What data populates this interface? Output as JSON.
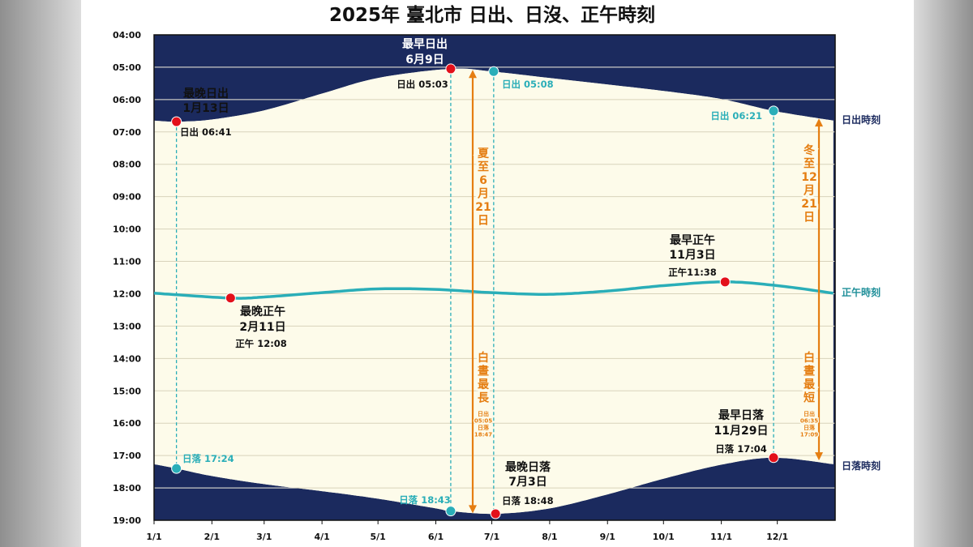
{
  "chart_data": {
    "type": "line",
    "title": "2025年 臺北市 日出、日沒、正午時刻",
    "y_tick_labels": [
      "04:00",
      "05:00",
      "06:00",
      "07:00",
      "08:00",
      "09:00",
      "10:00",
      "11:00",
      "12:00",
      "13:00",
      "14:00",
      "15:00",
      "16:00",
      "17:00",
      "18:00",
      "19:00"
    ],
    "x_tick_labels": [
      "1/1",
      "2/1",
      "3/1",
      "4/1",
      "5/1",
      "6/1",
      "7/1",
      "8/1",
      "9/1",
      "10/1",
      "11/1",
      "12/1"
    ],
    "ylim": [
      "04:00",
      "19:00"
    ],
    "xlim": [
      "2025-01-01",
      "2025-12-31"
    ],
    "grid": "horizontal",
    "series": [
      {
        "name": "日出時刻",
        "color": "#1b2a5e",
        "x": [
          "2025-01-01",
          "2025-01-13",
          "2025-02-01",
          "2025-03-01",
          "2025-04-01",
          "2025-05-01",
          "2025-06-09",
          "2025-07-01",
          "2025-08-01",
          "2025-09-01",
          "2025-10-01",
          "2025-11-01",
          "2025-11-29",
          "2025-12-31"
        ],
        "y": [
          "06:39",
          "06:41",
          "06:37",
          "06:20",
          "05:49",
          "05:20",
          "05:03",
          "05:08",
          "05:20",
          "05:32",
          "05:44",
          "05:59",
          "06:21",
          "06:39"
        ]
      },
      {
        "name": "正午時刻",
        "color": "#2aaeb8",
        "x": [
          "2025-01-01",
          "2025-02-11",
          "2025-03-01",
          "2025-04-01",
          "2025-05-01",
          "2025-06-01",
          "2025-07-01",
          "2025-08-01",
          "2025-09-01",
          "2025-10-01",
          "2025-11-03",
          "2025-12-01",
          "2025-12-31"
        ],
        "y": [
          "11:59",
          "12:08",
          "12:06",
          "11:58",
          "11:51",
          "11:52",
          "11:58",
          "12:01",
          "11:55",
          "11:45",
          "11:38",
          "11:45",
          "11:59"
        ]
      },
      {
        "name": "日落時刻",
        "color": "#1b2a5e",
        "x": [
          "2025-01-01",
          "2025-01-13",
          "2025-02-01",
          "2025-03-01",
          "2025-04-01",
          "2025-05-01",
          "2025-06-01",
          "2025-06-09",
          "2025-07-03",
          "2025-08-01",
          "2025-09-01",
          "2025-10-01",
          "2025-11-01",
          "2025-11-29",
          "2025-12-31"
        ],
        "y": [
          "17:16",
          "17:24",
          "17:38",
          "17:53",
          "18:06",
          "18:20",
          "18:38",
          "18:43",
          "18:48",
          "18:38",
          "18:12",
          "17:43",
          "17:17",
          "17:04",
          "17:16"
        ]
      }
    ],
    "annotations": {
      "latest_sunrise": {
        "title": "最晚日出",
        "date": "1月13日",
        "value": "日出 06:41"
      },
      "earliest_sunrise": {
        "title": "最早日出",
        "date": "6月9日",
        "value": "日出 05:03"
      },
      "sunrise_0701": {
        "value": "日出 05:08"
      },
      "sunrise_1129": {
        "value": "日出 06:21"
      },
      "latest_noon": {
        "title": "最晚正午",
        "date": "2月11日",
        "value": "正午 12:08"
      },
      "earliest_noon": {
        "title": "最早正午",
        "date": "11月3日",
        "value": "正午11:38"
      },
      "sunset_0113": {
        "value": "日落 17:24"
      },
      "sunset_0609": {
        "value": "日落 18:43"
      },
      "latest_sunset": {
        "title": "最晚日落",
        "date": "7月3日",
        "value": "日落 18:48"
      },
      "earliest_sunset": {
        "title": "最早日落",
        "date": "11月29日",
        "value": "日落 17:04"
      },
      "summer_solstice": {
        "label": [
          "夏",
          "至",
          "6",
          "月",
          "21",
          "日"
        ],
        "day_label": [
          "白",
          "晝",
          "最",
          "長"
        ],
        "detail": [
          "日出",
          "05:05",
          "日落",
          "18:47"
        ]
      },
      "winter_solstice": {
        "label": [
          "冬",
          "至",
          "12",
          "月",
          "21",
          "日"
        ],
        "day_label": [
          "白",
          "晝",
          "最",
          "短"
        ],
        "detail": [
          "日出",
          "06:35",
          "日落",
          "17:09"
        ]
      }
    },
    "legend": {
      "sunrise": "日出時刻",
      "noon": "正午時刻",
      "sunset": "日落時刻"
    },
    "colors": {
      "night": "#1b2a5e",
      "day": "#fdfbea",
      "teal": "#2aaeb8",
      "orange": "#e57e12",
      "red": "#e3101a",
      "grid": "#d8d3bb"
    }
  }
}
